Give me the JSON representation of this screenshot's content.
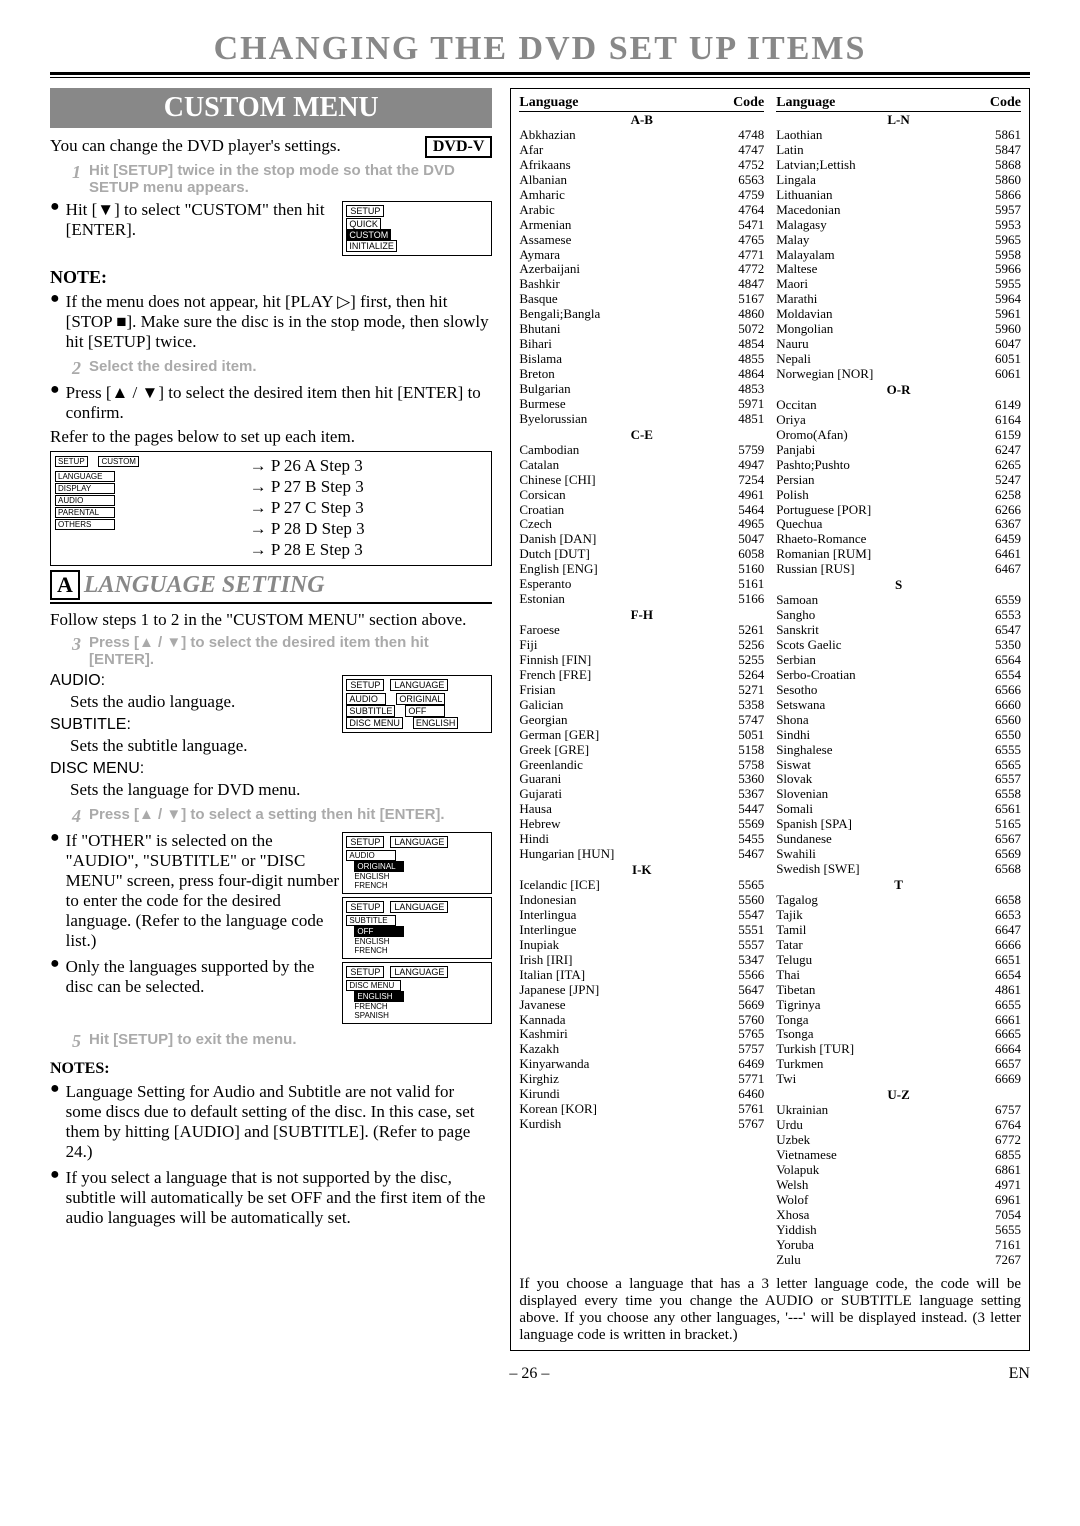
{
  "title": "CHANGING THE DVD SET UP ITEMS",
  "custom_menu": "CUSTOM MENU",
  "dvdv": "DVD-V",
  "intro": "You can change the DVD player's settings.",
  "step1_num": "1",
  "step1": "Hit [SETUP] twice in the stop mode so that the DVD SETUP menu appears.",
  "hit_custom": "Hit [▼] to select \"CUSTOM\" then hit [ENTER].",
  "note_hd": "NOTE:",
  "note1": "If the menu does not appear, hit [PLAY ▷] first, then hit [STOP ■]. Make sure the disc is in the stop mode, then slowly hit [SETUP] twice.",
  "step2_num": "2",
  "step2": "Select the desired item.",
  "press_select": "Press [▲ / ▼] to select the desired item then hit [ENTER] to confirm.",
  "refer": "Refer to the pages below to set up each item.",
  "diag_items": [
    "SETUP",
    "CUSTOM",
    "LANGUAGE",
    "DISPLAY",
    "AUDIO",
    "PARENTAL",
    "OTHERS"
  ],
  "diag_steps": [
    "P 26 A Step 3",
    "P 27 B Step 3",
    "P 27 C Step 3",
    "P 28 D Step 3",
    "P 28 E Step 3"
  ],
  "sec_a_letter": "A",
  "sec_a_title": "LANGUAGE SETTING",
  "follow": "Follow steps 1 to 2 in the \"CUSTOM MENU\" section above.",
  "step3_num": "3",
  "step3": "Press [▲ / ▼] to select the desired item then hit [ENTER].",
  "audio_hd": "AUDIO:",
  "audio_txt": "Sets the audio language.",
  "subtitle_hd": "SUBTITLE:",
  "subtitle_txt": "Sets the subtitle language.",
  "discmenu_hd": "DISC MENU:",
  "discmenu_txt": "Sets the language for DVD menu.",
  "step4_num": "4",
  "step4": "Press [▲ / ▼] to select a setting then hit [ENTER].",
  "other_txt": "If \"OTHER\" is selected on the \"AUDIO\", \"SUBTITLE\" or \"DISC MENU\" screen, press four-digit number to enter the code for the desired language. (Refer to the language code list.)",
  "only_txt": "Only the languages supported by the disc can be selected.",
  "step5_num": "5",
  "step5": "Hit [SETUP] to exit the menu.",
  "notes_hd": "NOTES:",
  "notes1": "Language Setting for Audio and Subtitle are not valid for some discs due to default setting of the disc. In this case, set them by hitting [AUDIO] and [SUBTITLE]. (Refer to page 24.)",
  "notes2": "If you select a language that is not supported by the disc, subtitle will automatically be set OFF and the first item of the audio languages will be automatically set.",
  "lang_hdr1": "Language",
  "lang_hdr2": "Code",
  "col1": [
    {
      "g": "A-B"
    },
    {
      "l": "Abkhazian",
      "c": "4748"
    },
    {
      "l": "Afar",
      "c": "4747"
    },
    {
      "l": "Afrikaans",
      "c": "4752"
    },
    {
      "l": "Albanian",
      "c": "6563"
    },
    {
      "l": "Amharic",
      "c": "4759"
    },
    {
      "l": "Arabic",
      "c": "4764"
    },
    {
      "l": "Armenian",
      "c": "5471"
    },
    {
      "l": "Assamese",
      "c": "4765"
    },
    {
      "l": "Aymara",
      "c": "4771"
    },
    {
      "l": "Azerbaijani",
      "c": "4772"
    },
    {
      "l": "Bashkir",
      "c": "4847"
    },
    {
      "l": "Basque",
      "c": "5167"
    },
    {
      "l": "Bengali;Bangla",
      "c": "4860"
    },
    {
      "l": "Bhutani",
      "c": "5072"
    },
    {
      "l": "Bihari",
      "c": "4854"
    },
    {
      "l": "Bislama",
      "c": "4855"
    },
    {
      "l": "Breton",
      "c": "4864"
    },
    {
      "l": "Bulgarian",
      "c": "4853"
    },
    {
      "l": "Burmese",
      "c": "5971"
    },
    {
      "l": "Byelorussian",
      "c": "4851"
    },
    {
      "g": "C-E"
    },
    {
      "l": "Cambodian",
      "c": "5759"
    },
    {
      "l": "Catalan",
      "c": "4947"
    },
    {
      "l": "Chinese [CHI]",
      "c": "7254"
    },
    {
      "l": "Corsican",
      "c": "4961"
    },
    {
      "l": "Croatian",
      "c": "5464"
    },
    {
      "l": "Czech",
      "c": "4965"
    },
    {
      "l": "Danish [DAN]",
      "c": "5047"
    },
    {
      "l": "Dutch [DUT]",
      "c": "6058"
    },
    {
      "l": "English [ENG]",
      "c": "5160"
    },
    {
      "l": "Esperanto",
      "c": "5161"
    },
    {
      "l": "Estonian",
      "c": "5166"
    },
    {
      "g": "F-H"
    },
    {
      "l": "Faroese",
      "c": "5261"
    },
    {
      "l": "Fiji",
      "c": "5256"
    },
    {
      "l": "Finnish [FIN]",
      "c": "5255"
    },
    {
      "l": "French [FRE]",
      "c": "5264"
    },
    {
      "l": "Frisian",
      "c": "5271"
    },
    {
      "l": "Galician",
      "c": "5358"
    },
    {
      "l": "Georgian",
      "c": "5747"
    },
    {
      "l": "German [GER]",
      "c": "5051"
    },
    {
      "l": "Greek [GRE]",
      "c": "5158"
    },
    {
      "l": "Greenlandic",
      "c": "5758"
    },
    {
      "l": "Guarani",
      "c": "5360"
    },
    {
      "l": "Gujarati",
      "c": "5367"
    },
    {
      "l": "Hausa",
      "c": "5447"
    },
    {
      "l": "Hebrew",
      "c": "5569"
    },
    {
      "l": "Hindi",
      "c": "5455"
    },
    {
      "l": "Hungarian [HUN]",
      "c": "5467"
    },
    {
      "g": "I-K"
    },
    {
      "l": "Icelandic [ICE]",
      "c": "5565"
    },
    {
      "l": "Indonesian",
      "c": "5560"
    },
    {
      "l": "Interlingua",
      "c": "5547"
    },
    {
      "l": "Interlingue",
      "c": "5551"
    },
    {
      "l": "Inupiak",
      "c": "5557"
    },
    {
      "l": "Irish [IRI]",
      "c": "5347"
    },
    {
      "l": "Italian [ITA]",
      "c": "5566"
    },
    {
      "l": "Japanese [JPN]",
      "c": "5647"
    },
    {
      "l": "Javanese",
      "c": "5669"
    },
    {
      "l": "Kannada",
      "c": "5760"
    },
    {
      "l": "Kashmiri",
      "c": "5765"
    },
    {
      "l": "Kazakh",
      "c": "5757"
    },
    {
      "l": "Kinyarwanda",
      "c": "6469"
    },
    {
      "l": "Kirghiz",
      "c": "5771"
    },
    {
      "l": "Kirundi",
      "c": "6460"
    },
    {
      "l": "Korean [KOR]",
      "c": "5761"
    },
    {
      "l": "Kurdish",
      "c": "5767"
    }
  ],
  "col2": [
    {
      "g": "L-N"
    },
    {
      "l": "Laothian",
      "c": "5861"
    },
    {
      "l": "Latin",
      "c": "5847"
    },
    {
      "l": "Latvian;Lettish",
      "c": "5868"
    },
    {
      "l": "Lingala",
      "c": "5860"
    },
    {
      "l": "Lithuanian",
      "c": "5866"
    },
    {
      "l": "Macedonian",
      "c": "5957"
    },
    {
      "l": "Malagasy",
      "c": "5953"
    },
    {
      "l": "Malay",
      "c": "5965"
    },
    {
      "l": "Malayalam",
      "c": "5958"
    },
    {
      "l": "Maltese",
      "c": "5966"
    },
    {
      "l": "Maori",
      "c": "5955"
    },
    {
      "l": "Marathi",
      "c": "5964"
    },
    {
      "l": "Moldavian",
      "c": "5961"
    },
    {
      "l": "Mongolian",
      "c": "5960"
    },
    {
      "l": "Nauru",
      "c": "6047"
    },
    {
      "l": "Nepali",
      "c": "6051"
    },
    {
      "l": "Norwegian [NOR]",
      "c": "6061"
    },
    {
      "g": "O-R"
    },
    {
      "l": "Occitan",
      "c": "6149"
    },
    {
      "l": "Oriya",
      "c": "6164"
    },
    {
      "l": "Oromo(Afan)",
      "c": "6159"
    },
    {
      "l": "Panjabi",
      "c": "6247"
    },
    {
      "l": "Pashto;Pushto",
      "c": "6265"
    },
    {
      "l": "Persian",
      "c": "5247"
    },
    {
      "l": "Polish",
      "c": "6258"
    },
    {
      "l": "Portuguese [POR]",
      "c": "6266"
    },
    {
      "l": "Quechua",
      "c": "6367"
    },
    {
      "l": "Rhaeto-Romance",
      "c": "6459"
    },
    {
      "l": "Romanian [RUM]",
      "c": "6461"
    },
    {
      "l": "Russian [RUS]",
      "c": "6467"
    },
    {
      "g": "S"
    },
    {
      "l": "Samoan",
      "c": "6559"
    },
    {
      "l": "Sangho",
      "c": "6553"
    },
    {
      "l": "Sanskrit",
      "c": "6547"
    },
    {
      "l": "Scots Gaelic",
      "c": "5350"
    },
    {
      "l": "Serbian",
      "c": "6564"
    },
    {
      "l": "Serbo-Croatian",
      "c": "6554"
    },
    {
      "l": "Sesotho",
      "c": "6566"
    },
    {
      "l": "Setswana",
      "c": "6660"
    },
    {
      "l": "Shona",
      "c": "6560"
    },
    {
      "l": "Sindhi",
      "c": "6550"
    },
    {
      "l": "Singhalese",
      "c": "6555"
    },
    {
      "l": "Siswat",
      "c": "6565"
    },
    {
      "l": "Slovak",
      "c": "6557"
    },
    {
      "l": "Slovenian",
      "c": "6558"
    },
    {
      "l": "Somali",
      "c": "6561"
    },
    {
      "l": "Spanish [SPA]",
      "c": "5165"
    },
    {
      "l": "Sundanese",
      "c": "6567"
    },
    {
      "l": "Swahili",
      "c": "6569"
    },
    {
      "l": "Swedish [SWE]",
      "c": "6568"
    },
    {
      "g": "T"
    },
    {
      "l": "Tagalog",
      "c": "6658"
    },
    {
      "l": "Tajik",
      "c": "6653"
    },
    {
      "l": "Tamil",
      "c": "6647"
    },
    {
      "l": "Tatar",
      "c": "6666"
    },
    {
      "l": "Telugu",
      "c": "6651"
    },
    {
      "l": "Thai",
      "c": "6654"
    },
    {
      "l": "Tibetan",
      "c": "4861"
    },
    {
      "l": "Tigrinya",
      "c": "6655"
    },
    {
      "l": "Tonga",
      "c": "6661"
    },
    {
      "l": "Tsonga",
      "c": "6665"
    },
    {
      "l": "Turkish [TUR]",
      "c": "6664"
    },
    {
      "l": "Turkmen",
      "c": "6657"
    },
    {
      "l": "Twi",
      "c": "6669"
    },
    {
      "g": "U-Z"
    },
    {
      "l": "Ukrainian",
      "c": "6757"
    },
    {
      "l": "Urdu",
      "c": "6764"
    },
    {
      "l": "Uzbek",
      "c": "6772"
    },
    {
      "l": "Vietnamese",
      "c": "6855"
    },
    {
      "l": "Volapuk",
      "c": "6861"
    },
    {
      "l": "Welsh",
      "c": "4971"
    },
    {
      "l": "Wolof",
      "c": "6961"
    },
    {
      "l": "Xhosa",
      "c": "7054"
    },
    {
      "l": "Yiddish",
      "c": "5655"
    },
    {
      "l": "Yoruba",
      "c": "7161"
    },
    {
      "l": "Zulu",
      "c": "7267"
    }
  ],
  "bottom": "If you choose a language that has a 3 letter language code, the code will be displayed every time you change the AUDIO or SUBTITLE language setting above. If you choose any other languages, '---' will be displayed instead. (3 letter language code is written in bracket.)",
  "pagenum": "– 26 –",
  "pagelbl": "EN",
  "mb_setup": "SETUP",
  "mb_quick": "QUICK",
  "mb_custom": "CUSTOM",
  "mb_init": "INITIALIZE",
  "mb_lang": "LANGUAGE",
  "mb_audio": "AUDIO",
  "mb_orig": "ORIGINAL",
  "mb_sub": "SUBTITLE",
  "mb_off": "OFF",
  "mb_disc": "DISC MENU",
  "mb_eng": "ENGLISH",
  "mb_fre": "FRENCH",
  "mb_spa": "SPANISH"
}
